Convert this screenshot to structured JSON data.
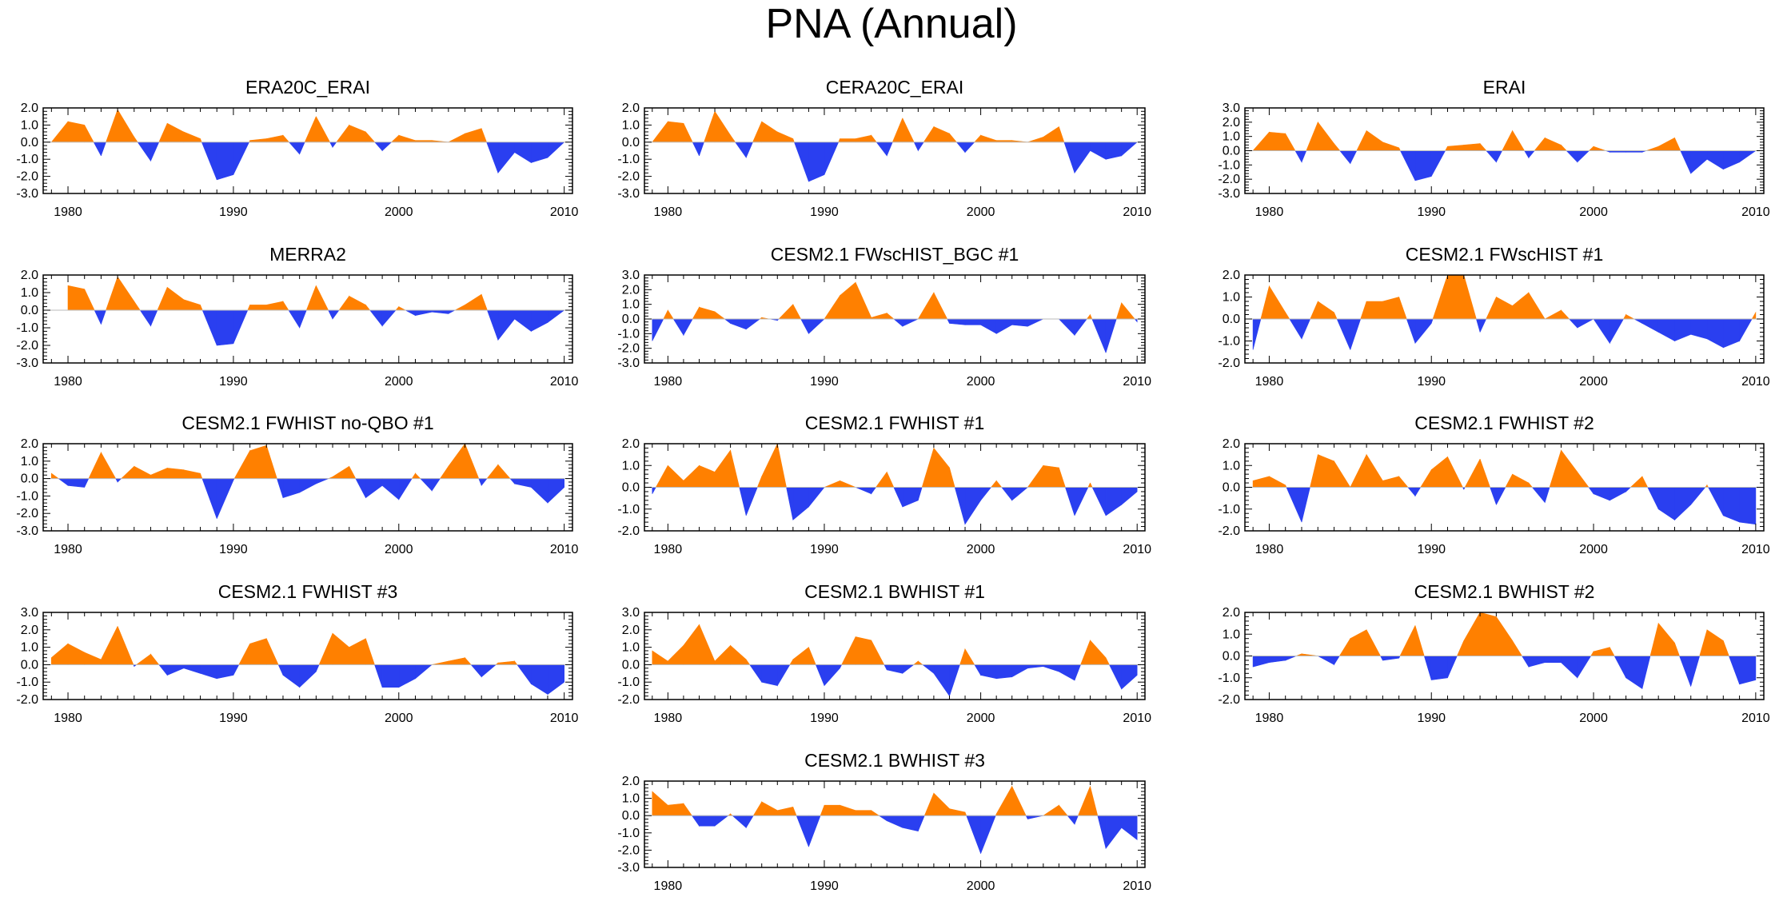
{
  "title": "PNA (Annual)",
  "colors": {
    "positive": "#ff8000",
    "negative": "#2a3ff0",
    "axis": "#000000",
    "zero_line": "#bbbbbb"
  },
  "chart_data": [
    {
      "type": "area",
      "title": "ERA20C_ERAI",
      "xlabel": "",
      "ylabel": "",
      "xlim": [
        1979,
        2010
      ],
      "ylim": [
        -3,
        2
      ],
      "yticks": [
        "2.0",
        "1.0",
        "0.0",
        "-1.0",
        "-2.0",
        "-3.0"
      ],
      "xticks": [
        "1980",
        "1990",
        "2000",
        "2010"
      ],
      "x": [
        1979,
        1980,
        1981,
        1982,
        1983,
        1984,
        1985,
        1986,
        1987,
        1988,
        1989,
        1990,
        1991,
        1992,
        1993,
        1994,
        1995,
        1996,
        1997,
        1998,
        1999,
        2000,
        2001,
        2002,
        2003,
        2004,
        2005,
        2006,
        2007,
        2008,
        2009,
        2010
      ],
      "values": [
        0,
        1.2,
        1.0,
        -0.8,
        1.9,
        0.3,
        -1.1,
        1.1,
        0.6,
        0.2,
        -2.2,
        -1.9,
        0.1,
        0.2,
        0.4,
        -0.7,
        1.5,
        -0.3,
        1.0,
        0.6,
        -0.5,
        0.4,
        0.1,
        0.1,
        0.0,
        0.5,
        0.8,
        -1.8,
        -0.6,
        -1.2,
        -0.9,
        0
      ]
    },
    {
      "type": "area",
      "title": "CERA20C_ERAI",
      "xlabel": "",
      "ylabel": "",
      "xlim": [
        1979,
        2010
      ],
      "ylim": [
        -3,
        2
      ],
      "yticks": [
        "2.0",
        "1.0",
        "0.0",
        "-1.0",
        "-2.0",
        "-3.0"
      ],
      "xticks": [
        "1980",
        "1990",
        "2000",
        "2010"
      ],
      "x": [
        1979,
        1980,
        1981,
        1982,
        1983,
        1984,
        1985,
        1986,
        1987,
        1988,
        1989,
        1990,
        1991,
        1992,
        1993,
        1994,
        1995,
        1996,
        1997,
        1998,
        1999,
        2000,
        2001,
        2002,
        2003,
        2004,
        2005,
        2006,
        2007,
        2008,
        2009,
        2010
      ],
      "values": [
        0,
        1.2,
        1.1,
        -0.8,
        1.8,
        0.4,
        -0.9,
        1.2,
        0.6,
        0.2,
        -2.3,
        -1.9,
        0.2,
        0.2,
        0.4,
        -0.8,
        1.4,
        -0.5,
        0.9,
        0.5,
        -0.6,
        0.4,
        0.1,
        0.1,
        0.0,
        0.3,
        0.9,
        -1.8,
        -0.5,
        -1.0,
        -0.8,
        0
      ]
    },
    {
      "type": "area",
      "title": "ERAI",
      "xlabel": "",
      "ylabel": "",
      "xlim": [
        1979,
        2010
      ],
      "ylim": [
        -3,
        3
      ],
      "yticks": [
        "3.0",
        "2.0",
        "1.0",
        "0.0",
        "-1.0",
        "-2.0",
        "-3.0"
      ],
      "xticks": [
        "1980",
        "1990",
        "2000",
        "2010"
      ],
      "x": [
        1979,
        1980,
        1981,
        1982,
        1983,
        1984,
        1985,
        1986,
        1987,
        1988,
        1989,
        1990,
        1991,
        1992,
        1993,
        1994,
        1995,
        1996,
        1997,
        1998,
        1999,
        2000,
        2001,
        2002,
        2003,
        2004,
        2005,
        2006,
        2007,
        2008,
        2009,
        2010
      ],
      "values": [
        0,
        1.3,
        1.2,
        -0.8,
        2.0,
        0.5,
        -0.9,
        1.4,
        0.6,
        0.2,
        -2.1,
        -1.8,
        0.3,
        0.4,
        0.5,
        -0.8,
        1.4,
        -0.5,
        0.9,
        0.4,
        -0.8,
        0.3,
        -0.1,
        -0.1,
        -0.1,
        0.3,
        0.9,
        -1.6,
        -0.6,
        -1.3,
        -0.8,
        0
      ]
    },
    {
      "type": "area",
      "title": "MERRA2",
      "xlabel": "",
      "ylabel": "",
      "xlim": [
        1979,
        2010
      ],
      "ylim": [
        -3,
        2
      ],
      "yticks": [
        "2.0",
        "1.0",
        "0.0",
        "-1.0",
        "-2.0",
        "-3.0"
      ],
      "xticks": [
        "1980",
        "1990",
        "2000",
        "2010"
      ],
      "x": [
        1980,
        1981,
        1982,
        1983,
        1984,
        1985,
        1986,
        1987,
        1988,
        1989,
        1990,
        1991,
        1992,
        1993,
        1994,
        1995,
        1996,
        1997,
        1998,
        1999,
        2000,
        2001,
        2002,
        2003,
        2004,
        2005,
        2006,
        2007,
        2008,
        2009,
        2010
      ],
      "values": [
        1.4,
        1.2,
        -0.8,
        1.9,
        0.5,
        -0.9,
        1.3,
        0.6,
        0.3,
        -2.0,
        -1.9,
        0.3,
        0.3,
        0.5,
        -1.0,
        1.4,
        -0.5,
        0.8,
        0.3,
        -0.9,
        0.2,
        -0.3,
        -0.1,
        -0.2,
        0.3,
        0.9,
        -1.7,
        -0.5,
        -1.2,
        -0.7,
        0
      ]
    },
    {
      "type": "area",
      "title": "CESM2.1 FWscHIST_BGC #1",
      "xlabel": "",
      "ylabel": "",
      "xlim": [
        1979,
        2010
      ],
      "ylim": [
        -3,
        3
      ],
      "yticks": [
        "3.0",
        "2.0",
        "1.0",
        "0.0",
        "-1.0",
        "-2.0",
        "-3.0"
      ],
      "xticks": [
        "1980",
        "1990",
        "2000",
        "2010"
      ],
      "x": [
        1979,
        1980,
        1981,
        1982,
        1983,
        1984,
        1985,
        1986,
        1987,
        1988,
        1989,
        1990,
        1991,
        1992,
        1993,
        1994,
        1995,
        1996,
        1997,
        1998,
        1999,
        2000,
        2001,
        2002,
        2003,
        2004,
        2005,
        2006,
        2007,
        2008,
        2009,
        2010
      ],
      "values": [
        -1.5,
        0.6,
        -1.1,
        0.8,
        0.5,
        -0.3,
        -0.7,
        0.1,
        -0.1,
        1.0,
        -1.0,
        0.0,
        1.6,
        2.5,
        0.1,
        0.4,
        -0.5,
        0.0,
        1.8,
        -0.3,
        -0.4,
        -0.4,
        -1.0,
        -0.4,
        -0.5,
        0.0,
        0.0,
        -1.1,
        0.3,
        -2.3,
        1.1,
        -0.2
      ]
    },
    {
      "type": "area",
      "title": "CESM2.1 FWscHIST #1",
      "xlabel": "",
      "ylabel": "",
      "xlim": [
        1979,
        2010
      ],
      "ylim": [
        -2,
        2
      ],
      "yticks": [
        "2.0",
        "1.0",
        "0.0",
        "-1.0",
        "-2.0"
      ],
      "xticks": [
        "1980",
        "1990",
        "2000",
        "2010"
      ],
      "x": [
        1979,
        1980,
        1981,
        1982,
        1983,
        1984,
        1985,
        1986,
        1987,
        1988,
        1989,
        1990,
        1991,
        1992,
        1993,
        1994,
        1995,
        1996,
        1997,
        1998,
        1999,
        2000,
        2001,
        2002,
        2003,
        2004,
        2005,
        2006,
        2007,
        2008,
        2009,
        2010
      ],
      "values": [
        -1.4,
        1.5,
        0.3,
        -0.9,
        0.8,
        0.3,
        -1.4,
        0.8,
        0.8,
        1.0,
        -1.1,
        -0.2,
        2.0,
        2.0,
        -0.6,
        1.0,
        0.6,
        1.2,
        0.0,
        0.4,
        -0.4,
        0.0,
        -1.1,
        0.2,
        -0.2,
        -0.6,
        -1.0,
        -0.7,
        -0.9,
        -1.3,
        -1.0,
        0.3
      ]
    },
    {
      "type": "area",
      "title": "CESM2.1 FWHIST no-QBO #1",
      "xlabel": "",
      "ylabel": "",
      "xlim": [
        1979,
        2010
      ],
      "ylim": [
        -3,
        2
      ],
      "yticks": [
        "2.0",
        "1.0",
        "0.0",
        "-1.0",
        "-2.0",
        "-3.0"
      ],
      "xticks": [
        "1980",
        "1990",
        "2000",
        "2010"
      ],
      "x": [
        1979,
        1980,
        1981,
        1982,
        1983,
        1984,
        1985,
        1986,
        1987,
        1988,
        1989,
        1990,
        1991,
        1992,
        1993,
        1994,
        1995,
        1996,
        1997,
        1998,
        1999,
        2000,
        2001,
        2002,
        2003,
        2004,
        2005,
        2006,
        2007,
        2008,
        2009,
        2010
      ],
      "values": [
        0.3,
        -0.4,
        -0.5,
        1.5,
        -0.2,
        0.7,
        0.2,
        0.6,
        0.5,
        0.3,
        -2.3,
        -0.1,
        1.6,
        1.9,
        -1.1,
        -0.8,
        -0.3,
        0.1,
        0.7,
        -1.1,
        -0.4,
        -1.2,
        0.3,
        -0.7,
        0.7,
        2.0,
        -0.4,
        0.8,
        -0.3,
        -0.5,
        -1.4,
        -0.5
      ]
    },
    {
      "type": "area",
      "title": "CESM2.1 FWHIST #1",
      "xlabel": "",
      "ylabel": "",
      "xlim": [
        1979,
        2010
      ],
      "ylim": [
        -2,
        2
      ],
      "yticks": [
        "2.0",
        "1.0",
        "0.0",
        "-1.0",
        "-2.0"
      ],
      "xticks": [
        "1980",
        "1990",
        "2000",
        "2010"
      ],
      "x": [
        1979,
        1980,
        1981,
        1982,
        1983,
        1984,
        1985,
        1986,
        1987,
        1988,
        1989,
        1990,
        1991,
        1992,
        1993,
        1994,
        1995,
        1996,
        1997,
        1998,
        1999,
        2000,
        2001,
        2002,
        2003,
        2004,
        2005,
        2006,
        2007,
        2008,
        2009,
        2010
      ],
      "values": [
        -0.3,
        1.0,
        0.3,
        1.0,
        0.7,
        1.7,
        -1.3,
        0.5,
        2.0,
        -1.5,
        -0.9,
        0.0,
        0.3,
        0.0,
        -0.3,
        0.7,
        -0.9,
        -0.6,
        1.8,
        0.9,
        -1.7,
        -0.6,
        0.3,
        -0.6,
        0.0,
        1.0,
        0.9,
        -1.3,
        0.2,
        -1.3,
        -0.8,
        -0.2
      ]
    },
    {
      "type": "area",
      "title": "CESM2.1 FWHIST #2",
      "xlabel": "",
      "ylabel": "",
      "xlim": [
        1979,
        2010
      ],
      "ylim": [
        -2,
        2
      ],
      "yticks": [
        "2.0",
        "1.0",
        "0.0",
        "-1.0",
        "-2.0"
      ],
      "xticks": [
        "1980",
        "1990",
        "2000",
        "2010"
      ],
      "x": [
        1979,
        1980,
        1981,
        1982,
        1983,
        1984,
        1985,
        1986,
        1987,
        1988,
        1989,
        1990,
        1991,
        1992,
        1993,
        1994,
        1995,
        1996,
        1997,
        1998,
        1999,
        2000,
        2001,
        2002,
        2003,
        2004,
        2005,
        2006,
        2007,
        2008,
        2009,
        2010
      ],
      "values": [
        0.3,
        0.5,
        0.1,
        -1.6,
        1.5,
        1.2,
        0.0,
        1.5,
        0.3,
        0.5,
        -0.4,
        0.8,
        1.4,
        -0.1,
        1.3,
        -0.8,
        0.6,
        0.2,
        -0.7,
        1.7,
        0.7,
        -0.3,
        -0.6,
        -0.2,
        0.5,
        -1.0,
        -1.5,
        -0.8,
        0.1,
        -1.3,
        -1.6,
        -1.7
      ]
    },
    {
      "type": "area",
      "title": "CESM2.1 FWHIST #3",
      "xlabel": "",
      "ylabel": "",
      "xlim": [
        1979,
        2010
      ],
      "ylim": [
        -2,
        3
      ],
      "yticks": [
        "3.0",
        "2.0",
        "1.0",
        "0.0",
        "-1.0",
        "-2.0"
      ],
      "xticks": [
        "1980",
        "1990",
        "2000",
        "2010"
      ],
      "x": [
        1979,
        1980,
        1981,
        1982,
        1983,
        1984,
        1985,
        1986,
        1987,
        1988,
        1989,
        1990,
        1991,
        1992,
        1993,
        1994,
        1995,
        1996,
        1997,
        1998,
        1999,
        2000,
        2001,
        2002,
        2003,
        2004,
        2005,
        2006,
        2007,
        2008,
        2009,
        2010
      ],
      "values": [
        0.4,
        1.2,
        0.7,
        0.3,
        2.2,
        -0.1,
        0.6,
        -0.6,
        -0.2,
        -0.5,
        -0.8,
        -0.6,
        1.2,
        1.5,
        -0.6,
        -1.3,
        -0.4,
        1.8,
        1.0,
        1.5,
        -1.3,
        -1.3,
        -0.8,
        0.0,
        0.2,
        0.4,
        -0.7,
        0.1,
        0.2,
        -1.1,
        -1.7,
        -1.0
      ]
    },
    {
      "type": "area",
      "title": "CESM2.1 BWHIST #1",
      "xlabel": "",
      "ylabel": "",
      "xlim": [
        1979,
        2010
      ],
      "ylim": [
        -2,
        3
      ],
      "yticks": [
        "3.0",
        "2.0",
        "1.0",
        "0.0",
        "-1.0",
        "-2.0"
      ],
      "xticks": [
        "1980",
        "1990",
        "2000",
        "2010"
      ],
      "x": [
        1979,
        1980,
        1981,
        1982,
        1983,
        1984,
        1985,
        1986,
        1987,
        1988,
        1989,
        1990,
        1991,
        1992,
        1993,
        1994,
        1995,
        1996,
        1997,
        1998,
        1999,
        2000,
        2001,
        2002,
        2003,
        2004,
        2005,
        2006,
        2007,
        2008,
        2009,
        2010
      ],
      "values": [
        0.8,
        0.2,
        1.1,
        2.3,
        0.2,
        1.1,
        0.3,
        -1.0,
        -1.2,
        0.3,
        1.0,
        -1.2,
        -0.2,
        1.6,
        1.4,
        -0.3,
        -0.5,
        0.2,
        -0.5,
        -1.8,
        0.9,
        -0.6,
        -0.8,
        -0.7,
        -0.2,
        -0.1,
        -0.4,
        -0.9,
        1.4,
        0.4,
        -1.4,
        -0.6
      ]
    },
    {
      "type": "area",
      "title": "CESM2.1 BWHIST #2",
      "xlabel": "",
      "ylabel": "",
      "xlim": [
        1979,
        2010
      ],
      "ylim": [
        -2,
        2
      ],
      "yticks": [
        "2.0",
        "1.0",
        "0.0",
        "-1.0",
        "-2.0"
      ],
      "xticks": [
        "1980",
        "1990",
        "2000",
        "2010"
      ],
      "x": [
        1979,
        1980,
        1981,
        1982,
        1983,
        1984,
        1985,
        1986,
        1987,
        1988,
        1989,
        1990,
        1991,
        1992,
        1993,
        1994,
        1995,
        1996,
        1997,
        1998,
        1999,
        2000,
        2001,
        2002,
        2003,
        2004,
        2005,
        2006,
        2007,
        2008,
        2009,
        2010
      ],
      "values": [
        -0.5,
        -0.3,
        -0.2,
        0.1,
        0.0,
        -0.4,
        0.8,
        1.2,
        -0.2,
        -0.1,
        1.4,
        -1.1,
        -1.0,
        0.7,
        2.0,
        1.8,
        0.7,
        -0.5,
        -0.3,
        -0.3,
        -1.0,
        0.2,
        0.4,
        -1.0,
        -1.5,
        1.5,
        0.6,
        -1.4,
        1.2,
        0.7,
        -1.3,
        -1.1
      ]
    },
    {
      "type": "area",
      "title": "CESM2.1 BWHIST #3",
      "xlabel": "",
      "ylabel": "",
      "xlim": [
        1979,
        2010
      ],
      "ylim": [
        -3,
        2
      ],
      "yticks": [
        "2.0",
        "1.0",
        "0.0",
        "-1.0",
        "-2.0",
        "-3.0"
      ],
      "xticks": [
        "1980",
        "1990",
        "2000",
        "2010"
      ],
      "x": [
        1979,
        1980,
        1981,
        1982,
        1983,
        1984,
        1985,
        1986,
        1987,
        1988,
        1989,
        1990,
        1991,
        1992,
        1993,
        1994,
        1995,
        1996,
        1997,
        1998,
        1999,
        2000,
        2001,
        2002,
        2003,
        2004,
        2005,
        2006,
        2007,
        2008,
        2009,
        2010
      ],
      "values": [
        1.4,
        0.6,
        0.7,
        -0.6,
        -0.6,
        0.1,
        -0.7,
        0.8,
        0.3,
        0.5,
        -1.8,
        0.6,
        0.6,
        0.3,
        0.3,
        -0.3,
        -0.7,
        -0.9,
        1.3,
        0.4,
        0.2,
        -2.2,
        0.1,
        1.7,
        -0.2,
        0.0,
        0.6,
        -0.5,
        1.7,
        -1.9,
        -0.7,
        -1.4
      ]
    }
  ]
}
